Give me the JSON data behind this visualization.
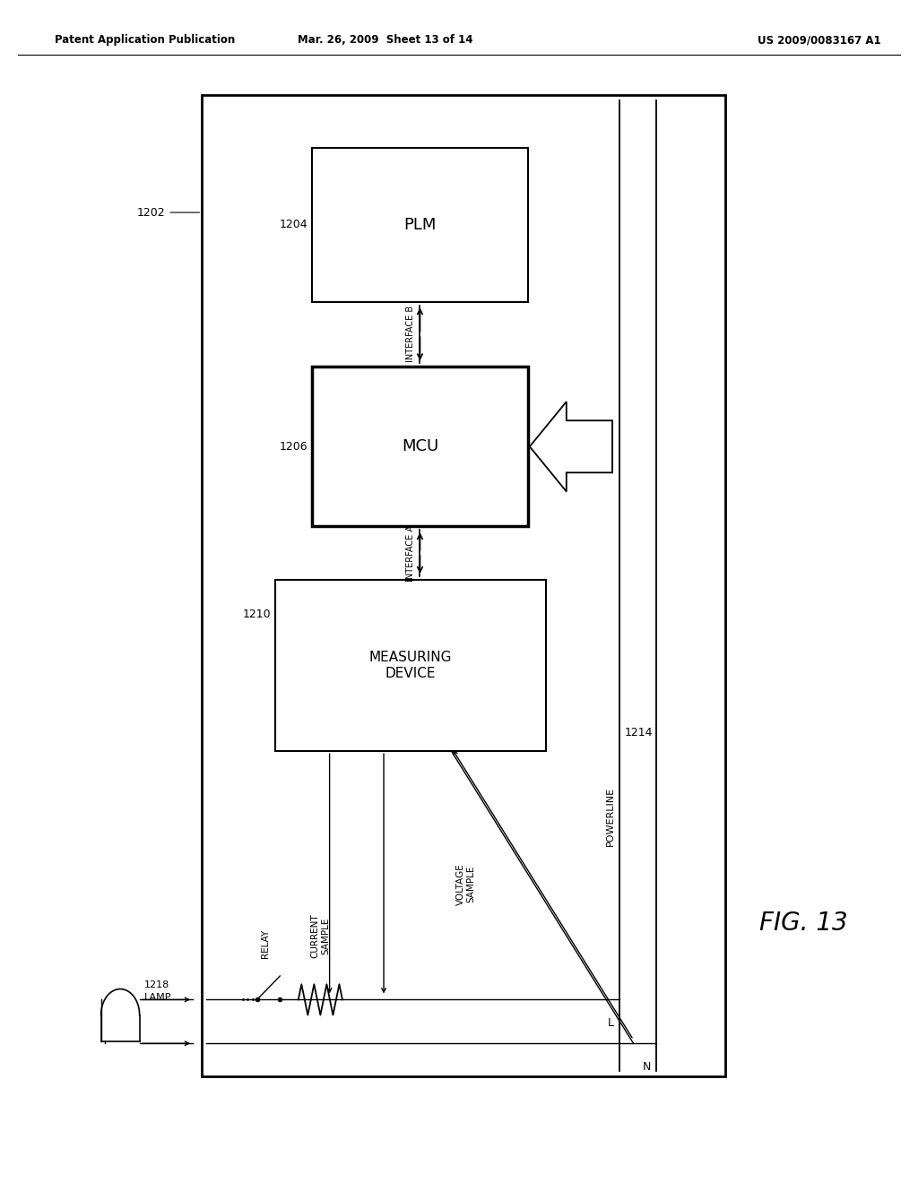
{
  "bg_color": "#ffffff",
  "header_left": "Patent Application Publication",
  "header_mid": "Mar. 26, 2009  Sheet 13 of 14",
  "header_right": "US 2009/0083167 A1",
  "fig_label": "FIG. 13",
  "outer_id": "1202",
  "plm_label": "PLM",
  "plm_id": "1204",
  "mcu_label": "MCU",
  "mcu_id": "1206",
  "meas_label": "MEASURING\nDEVICE",
  "meas_id": "1210",
  "interface_b_label": "INTERFACE B",
  "interface_a_label": "INTERFACE A",
  "powerline_label": "POWERLINE",
  "powerline_id": "1214",
  "lamp_label": "LAMP",
  "lamp_id": "1218",
  "relay_label": "RELAY",
  "current_sample_label": "CURRENT\nSAMPLE",
  "voltage_sample_label": "VOLTAGE\nSAMPLE",
  "L_label": "L",
  "N_label": "N"
}
